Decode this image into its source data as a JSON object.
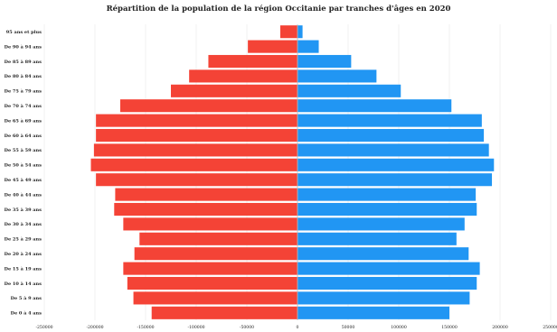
{
  "chart_data": {
    "type": "bar",
    "orientation": "horizontal-population-pyramid",
    "title": "Répartition de la population de la région Occitanie  par tranches d'âges en 2020",
    "categories": [
      "De 0 à 4 ans",
      "De 5 à 9 ans",
      "De 10 à 14 ans",
      "De 15 à 19 ans",
      "De 20 à 24 ans",
      "De 25 à 29 ans",
      "De 30 à 34 ans",
      "De 35 à 39 ans",
      "De 40 à 44 ans",
      "De 45 à 49 ans",
      "De 50 à 54 ans",
      "De 55 à 59 ans",
      "De 60 à 64 ans",
      "De 65 à 69 ans",
      "De 70 à 74 ans",
      "De 75 à 79 ans",
      "De 80 à 84 ans",
      "De 85 à 89 ans",
      "De 90 à 94 ans",
      "95 ans et plus"
    ],
    "series": [
      {
        "color": "#f44336",
        "values": [
          -144000,
          -162000,
          -168000,
          -172000,
          -161000,
          -156000,
          -172000,
          -181000,
          -180000,
          -199000,
          -204000,
          -201000,
          -199000,
          -199000,
          -175000,
          -125000,
          -107000,
          -88000,
          -49000,
          -17000
        ]
      },
      {
        "color": "#2196f3",
        "values": [
          150000,
          170000,
          177000,
          180000,
          169000,
          157000,
          165000,
          177000,
          176000,
          192000,
          194000,
          189000,
          184000,
          182000,
          152000,
          102000,
          78000,
          53000,
          21000,
          5000
        ]
      }
    ],
    "xlim": [
      -250000,
      250000
    ],
    "xticks": [
      -250000,
      -200000,
      -150000,
      -100000,
      -50000,
      0,
      50000,
      100000,
      150000,
      200000,
      250000
    ],
    "xtick_labels": [
      "-250000",
      "-200000",
      "-150000",
      "-100000",
      "-50000",
      "0",
      "50000",
      "100000",
      "150000",
      "200000",
      "250000"
    ],
    "grid": true
  }
}
